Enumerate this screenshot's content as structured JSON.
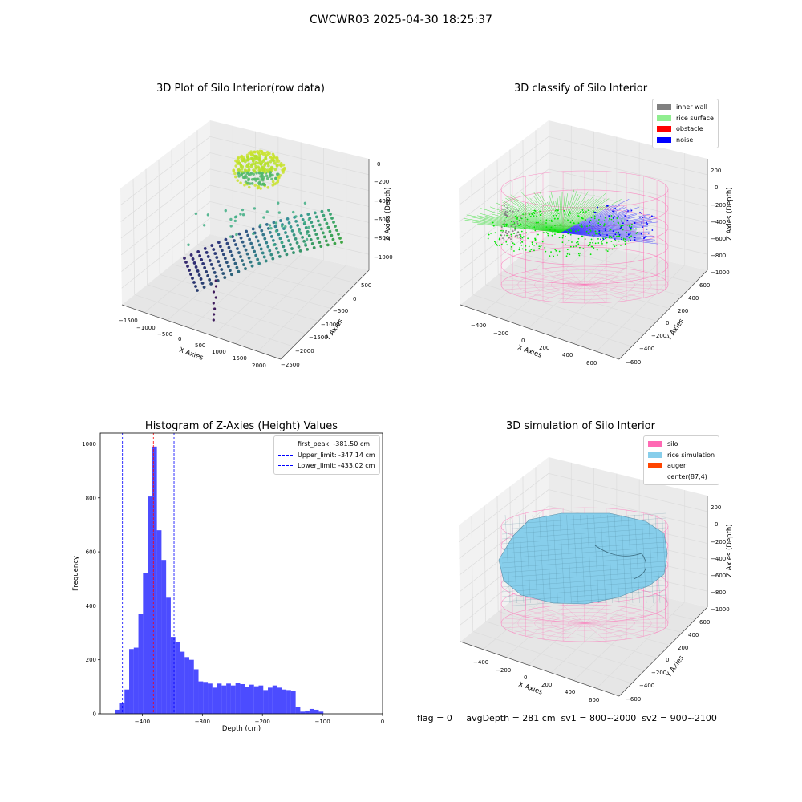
{
  "figure": {
    "title": "CWCWR03 2025-04-30 18:25:37",
    "footer": "flag = 0     avgDepth = 281 cm  sv1 = 800~2000  sv2 = 900~2100"
  },
  "colors": {
    "inner_wall": "#808080",
    "rice_surface": "#90EE90",
    "obstacle": "#ff0000",
    "noise": "#0000ff",
    "silo": "#ff69b4",
    "rice_simulation": "#87ceeb",
    "auger": "#ff4500",
    "histogram_bar": "#0000ff",
    "first_peak_line": "#ff0000",
    "limit_line": "#0000ff"
  },
  "panel1": {
    "title": "3D Plot of Silo Interior(row data)",
    "xlabel": "X Axies",
    "ylabel": "Y Axies",
    "zlabel": "Z Axies (Depth)",
    "xticks": [
      "−1500",
      "−1000",
      "−500",
      "0",
      "500",
      "1000",
      "1500",
      "2000"
    ],
    "yticks": [
      "500",
      "0",
      "−500",
      "−1000",
      "−1500",
      "−2000",
      "−2500"
    ],
    "zticks": [
      "0",
      "−200",
      "−400",
      "−600",
      "−800",
      "−1000"
    ]
  },
  "panel2": {
    "title": "3D classify of Silo Interior",
    "xlabel": "X Axies",
    "ylabel": "Y Axies",
    "zlabel": "Z Axies (Depth)",
    "xticks": [
      "−400",
      "−200",
      "0",
      "200",
      "400",
      "600"
    ],
    "yticks": [
      "600",
      "400",
      "200",
      "0",
      "−200",
      "−400",
      "−600"
    ],
    "zticks": [
      "200",
      "0",
      "−200",
      "−400",
      "−600",
      "−800",
      "−1000"
    ],
    "legend": [
      "inner wall",
      "rice surface",
      "obstacle",
      "noise"
    ]
  },
  "panel4": {
    "title": "3D simulation of Silo Interior",
    "xlabel": "X Axies",
    "ylabel": "Y Axies",
    "zlabel": "Z Axies (Depth)",
    "xticks": [
      "−400",
      "−200",
      "0",
      "200",
      "400",
      "600"
    ],
    "yticks": [
      "600",
      "400",
      "200",
      "0",
      "−200",
      "−400",
      "−600"
    ],
    "zticks": [
      "200",
      "0",
      "−200",
      "−400",
      "−600",
      "−800",
      "−1000"
    ],
    "legend": [
      "silo",
      "rice simulation",
      "auger",
      "center(87,4)"
    ]
  },
  "chart_data": [
    {
      "type": "bar",
      "title": "Histogram of Z-Axies (Height) Values",
      "xlabel": "Depth (cm)",
      "ylabel": "Frequency",
      "xlim": [
        -470,
        0
      ],
      "ylim": [
        0,
        1040
      ],
      "xticks": [
        -400,
        -300,
        -200,
        -100,
        0
      ],
      "yticks": [
        0,
        200,
        400,
        600,
        800,
        1000
      ],
      "bin_start": -445,
      "bin_width": 7.7,
      "values": [
        15,
        40,
        90,
        240,
        245,
        370,
        520,
        805,
        990,
        680,
        570,
        430,
        285,
        265,
        230,
        210,
        200,
        165,
        120,
        118,
        112,
        97,
        112,
        105,
        112,
        105,
        113,
        110,
        100,
        108,
        102,
        105,
        88,
        97,
        105,
        97,
        90,
        88,
        85,
        25,
        8,
        12,
        18,
        15,
        8
      ],
      "vlines": [
        {
          "label": "first_peak: -381.50 cm",
          "x": -381.5,
          "color": "#ff0000"
        },
        {
          "label": "Upper_limit: -347.14 cm",
          "x": -347.14,
          "color": "#0000ff"
        },
        {
          "label": "Lower_limit: -433.02 cm",
          "x": -433.02,
          "color": "#0000ff"
        }
      ],
      "legend_position": "top-right",
      "grid": false
    }
  ]
}
